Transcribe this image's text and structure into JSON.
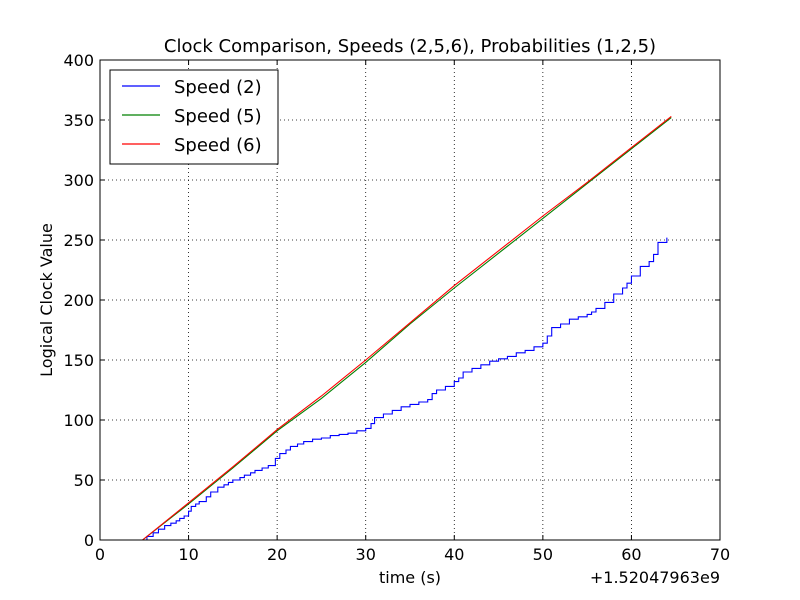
{
  "chart_data": {
    "type": "line",
    "title": "Clock Comparison, Speeds (2,5,6), Probabilities (1,2,5)",
    "xlabel": "time (s)",
    "ylabel": "Logical Clock Value",
    "x_offset_label": "+1.52047963e9",
    "xlim": [
      0,
      70
    ],
    "ylim": [
      0,
      400
    ],
    "xticks": [
      0,
      10,
      20,
      30,
      40,
      50,
      60,
      70
    ],
    "yticks": [
      0,
      50,
      100,
      150,
      200,
      250,
      300,
      350,
      400
    ],
    "grid": true,
    "legend_position": "top-left",
    "series": [
      {
        "name": "Speed (2)",
        "color": "#0000ff",
        "step": true,
        "x": [
          4.8,
          5.3,
          6.0,
          6.6,
          7.3,
          8.0,
          8.6,
          9.0,
          9.5,
          10.0,
          10.3,
          10.8,
          11.2,
          12.0,
          12.5,
          13.3,
          14.0,
          14.5,
          15.0,
          15.8,
          16.3,
          17.0,
          17.5,
          18.3,
          19.0,
          19.8,
          20.3,
          21.0,
          21.5,
          22.3,
          23.0,
          24.0,
          25.0,
          26.0,
          27.0,
          28.0,
          29.0,
          30.0,
          30.6,
          31.0,
          32.0,
          33.0,
          34.0,
          35.0,
          36.0,
          37.0,
          37.5,
          38.0,
          39.0,
          40.0,
          40.5,
          41.0,
          42.0,
          43.0,
          44.0,
          45.0,
          46.0,
          47.0,
          48.0,
          49.0,
          50.0,
          50.5,
          51.0,
          52.0,
          53.0,
          54.0,
          55.0,
          55.5,
          56.0,
          57.0,
          58.0,
          59.0,
          59.5,
          60.0,
          61.0,
          62.0,
          62.5,
          63.0,
          64.0
        ],
        "y": [
          0,
          3,
          6,
          9,
          12,
          14,
          16,
          18,
          20,
          24,
          28,
          30,
          32,
          36,
          40,
          44,
          46,
          48,
          50,
          52,
          54,
          56,
          58,
          60,
          62,
          68,
          72,
          75,
          78,
          80,
          82,
          84,
          85,
          87,
          88,
          89,
          91,
          93,
          97,
          102,
          105,
          108,
          111,
          113,
          115,
          117,
          122,
          125,
          128,
          132,
          135,
          140,
          143,
          146,
          149,
          151,
          153,
          156,
          158,
          161,
          164,
          170,
          177,
          180,
          184,
          186,
          188,
          190,
          193,
          198,
          205,
          210,
          214,
          220,
          228,
          232,
          238,
          248,
          252
        ]
      },
      {
        "name": "Speed (5)",
        "color": "#008000",
        "step": false,
        "x": [
          4.8,
          10,
          15,
          20,
          25,
          30,
          35,
          40,
          45,
          50,
          55,
          60,
          64.5
        ],
        "y": [
          0,
          30,
          60,
          91,
          118,
          148,
          180,
          210,
          239,
          268,
          297,
          326,
          352
        ]
      },
      {
        "name": "Speed (6)",
        "color": "#ff0000",
        "step": false,
        "x": [
          4.8,
          10,
          15,
          20,
          25,
          30,
          35,
          40,
          45,
          50,
          55,
          60,
          64.5
        ],
        "y": [
          0,
          31,
          61,
          92,
          120,
          150,
          181,
          212,
          241,
          270,
          298,
          327,
          353
        ]
      }
    ]
  }
}
